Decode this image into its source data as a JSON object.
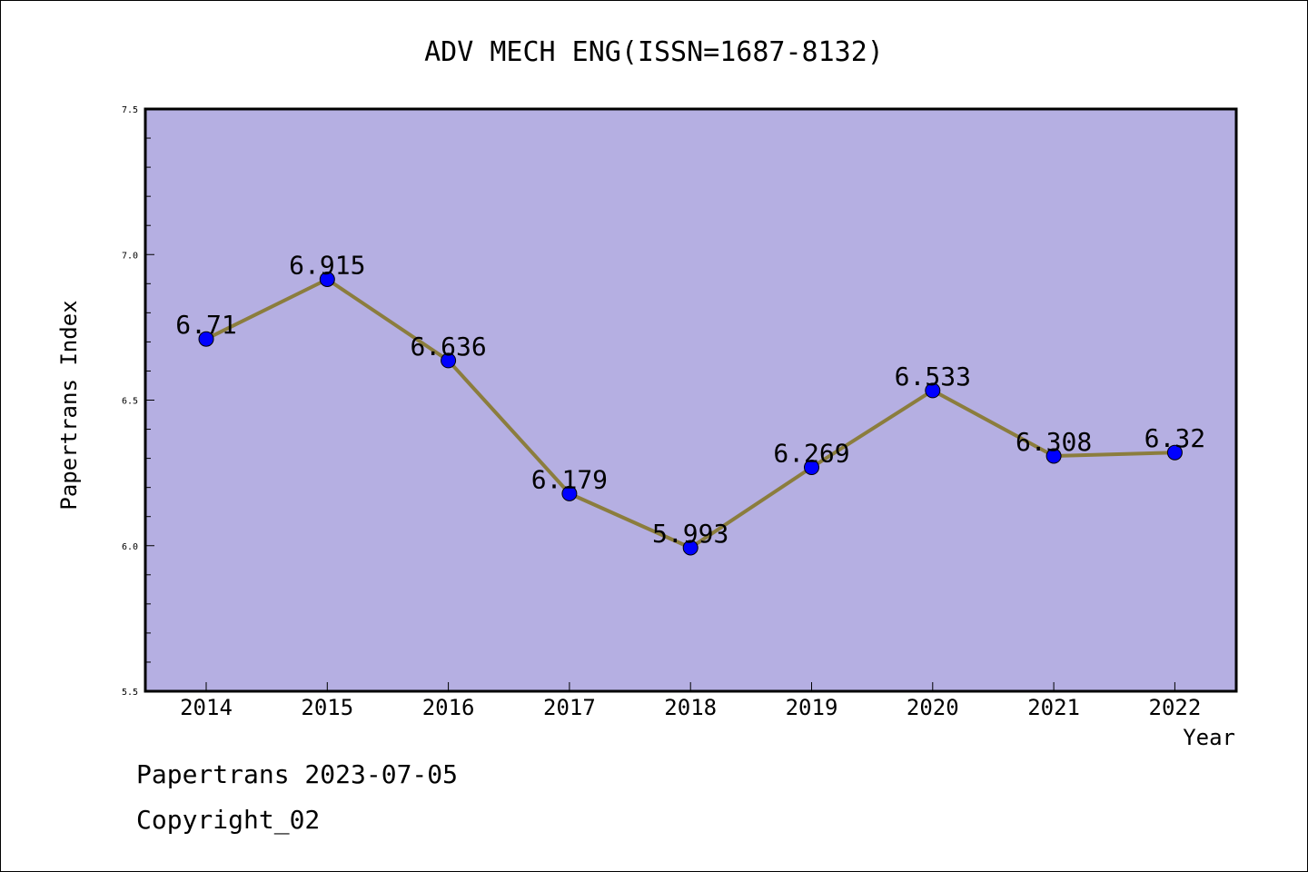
{
  "chart_data": {
    "type": "line",
    "title": "ADV MECH ENG(ISSN=1687-8132)",
    "xlabel": "Year",
    "ylabel": "Papertrans Index",
    "categories": [
      "2014",
      "2015",
      "2016",
      "2017",
      "2018",
      "2019",
      "2020",
      "2021",
      "2022"
    ],
    "series": [
      {
        "values": [
          6.71,
          6.915,
          6.636,
          6.179,
          5.993,
          6.269,
          6.533,
          6.308,
          6.32
        ]
      }
    ],
    "data_labels": [
      "6.71",
      "6.915",
      "6.636",
      "6.179",
      "5.993",
      "6.269",
      "6.533",
      "6.308",
      "6.32"
    ],
    "ylim": [
      5.5,
      7.5
    ],
    "yticks": [
      "5.5",
      "6.0",
      "6.5",
      "7.0",
      "7.5"
    ],
    "grid": false,
    "colors": {
      "plot_background": "#b5afe2",
      "line": "#8b7d3d",
      "marker": "#0000ff"
    }
  },
  "footer": {
    "line1": "Papertrans 2023-07-05",
    "line2": "Copyright_02"
  }
}
